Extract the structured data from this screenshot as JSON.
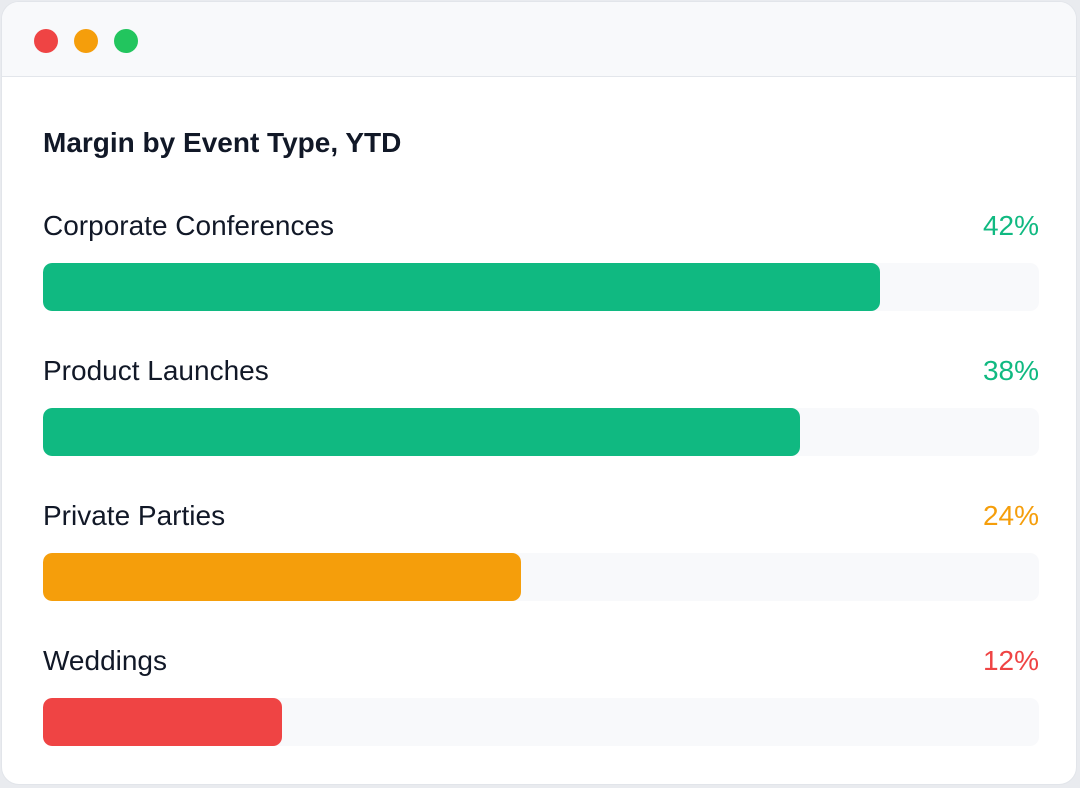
{
  "window": {
    "controls": [
      {
        "name": "close",
        "color": "#ef4444"
      },
      {
        "name": "minimize",
        "color": "#f59e0b"
      },
      {
        "name": "maximize",
        "color": "#22c55e"
      }
    ]
  },
  "chart_data": {
    "type": "bar",
    "orientation": "horizontal",
    "title": "Margin by Event Type, YTD",
    "xlabel": "",
    "ylabel": "",
    "xlim": [
      0,
      50
    ],
    "grid": false,
    "categories": [
      "Corporate Conferences",
      "Product Launches",
      "Private Parties",
      "Weddings"
    ],
    "values": [
      42,
      38,
      24,
      12
    ],
    "value_labels": [
      "42%",
      "38%",
      "24%",
      "12%"
    ],
    "colors": [
      "#10b981",
      "#10b981",
      "#f59e0b",
      "#ef4444"
    ]
  }
}
